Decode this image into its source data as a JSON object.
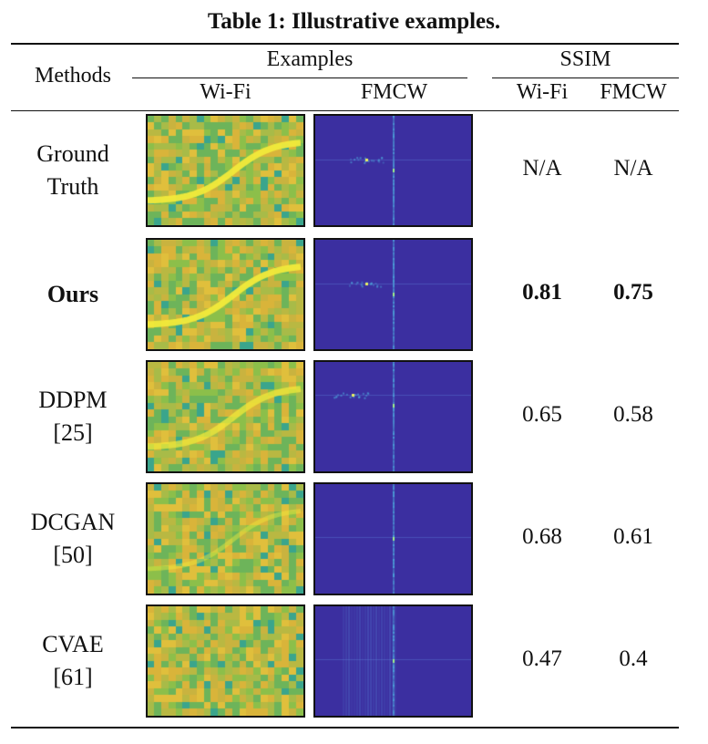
{
  "caption": "Table 1: Illustrative examples.",
  "header": {
    "methods": "Methods",
    "examples": "Examples",
    "ssim": "SSIM",
    "wifi": "Wi-Fi",
    "fmcw": "FMCW"
  },
  "rows": [
    {
      "name": "Ground",
      "ref": "Truth",
      "ssim_wifi": "N/A",
      "ssim_fmcw": "N/A",
      "bold": false,
      "wifi_curve": "full",
      "fmcw_style": "gt"
    },
    {
      "name": "Ours",
      "ref": "",
      "ssim_wifi": "0.81",
      "ssim_fmcw": "0.75",
      "bold": true,
      "wifi_curve": "full",
      "fmcw_style": "ours"
    },
    {
      "name": "DDPM",
      "ref": "[25]",
      "ssim_wifi": "0.65",
      "ssim_fmcw": "0.58",
      "bold": false,
      "wifi_curve": "faint",
      "fmcw_style": "ddpm"
    },
    {
      "name": "DCGAN",
      "ref": "[50]",
      "ssim_wifi": "0.68",
      "ssim_fmcw": "0.61",
      "bold": false,
      "wifi_curve": "weak",
      "fmcw_style": "dcgan"
    },
    {
      "name": "CVAE",
      "ref": "[61]",
      "ssim_wifi": "0.47",
      "ssim_fmcw": "0.4",
      "bold": false,
      "wifi_curve": "none",
      "fmcw_style": "cvae"
    }
  ],
  "colors": {
    "heatmap_base": "#d9b43a",
    "heatmap_green": "#8cbf4a",
    "heatmap_teal": "#3aa58c",
    "heatmap_highlight": "#f2ea3a",
    "fmcw_bg": "#3b2fa0",
    "fmcw_line": "#4fb0e0"
  }
}
